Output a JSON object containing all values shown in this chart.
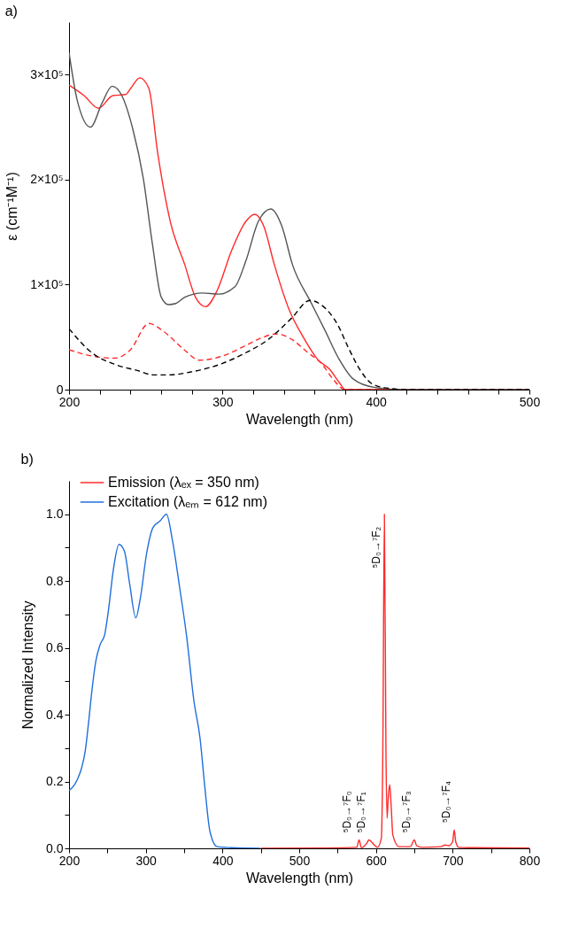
{
  "chart_data": [
    {
      "type": "line",
      "title": "a)",
      "xlabel": "Wavelength (nm)",
      "ylabel": "ε (cm⁻¹M⁻¹)",
      "xlim": [
        200,
        500
      ],
      "xticks": [
        200,
        {
          "value": 220,
          "label": null
        },
        {
          "value": 240,
          "label": null
        },
        {
          "value": 260,
          "label": null
        },
        {
          "value": 280,
          "label": null
        },
        300,
        {
          "value": 320,
          "label": null
        },
        {
          "value": 340,
          "label": null
        },
        {
          "value": 360,
          "label": null
        },
        {
          "value": 380,
          "label": null
        },
        400,
        {
          "value": 420,
          "label": null
        },
        {
          "value": 440,
          "label": null
        },
        {
          "value": 460,
          "label": null
        },
        {
          "value": 480,
          "label": null
        },
        500
      ],
      "ylim": [
        0,
        350000
      ],
      "yticks": [
        0,
        {
          "value": 100000,
          "label": "1×10⁵"
        },
        {
          "value": 200000,
          "label": "2×10⁵"
        },
        {
          "value": 300000,
          "label": "3×10⁵"
        }
      ],
      "grid": false,
      "marker": "none",
      "series": [
        {
          "color": "#ff2a2a",
          "line_style": "solid",
          "x": [
            200,
            209.8,
            219.2,
            228.5,
            236.7,
            240.2,
            246.1,
            252,
            257.8,
            266,
            275.4,
            282.4,
            289,
            296.4,
            305.8,
            315.1,
            321,
            326.8,
            333.8,
            343.2,
            352.6,
            361.9,
            370.1,
            376,
            380.2,
            400,
            500
          ],
          "values": [
            290000,
            280000,
            268000,
            280000,
            281000,
            287000,
            297000,
            287000,
            225000,
            160000,
            119000,
            88000,
            79000,
            94000,
            132000,
            160000,
            167000,
            156000,
            119000,
            77000,
            50000,
            29000,
            19000,
            7000,
            0,
            0,
            0
          ]
        },
        {
          "color": "#555555",
          "line_style": "solid",
          "x": [
            200,
            205.1,
            214,
            221.5,
            228.1,
            234.4,
            241.4,
            248.4,
            254.3,
            260.1,
            264.8,
            269.5,
            275.4,
            287,
            297.6,
            308.1,
            315.1,
            323.3,
            331.5,
            338.6,
            345.6,
            357.3,
            366.6,
            376,
            385.3,
            399.4,
            418,
            500
          ],
          "values": [
            321000,
            277000,
            250000,
            273000,
            289000,
            280000,
            249000,
            201000,
            139000,
            88000,
            81000,
            82000,
            88000,
            92000,
            91000,
            98000,
            122000,
            160000,
            172000,
            156000,
            119000,
            84000,
            57000,
            29000,
            10000,
            2000,
            0,
            0
          ]
        },
        {
          "color": "#ff2a2a",
          "line_style": "dashed",
          "x": [
            200,
            215,
            230,
            240,
            252,
            262,
            275,
            285,
            300,
            315,
            325,
            335,
            345,
            355,
            365,
            372,
            380,
            500
          ],
          "values": [
            38000,
            32000,
            30000,
            38000,
            63000,
            55000,
            38000,
            28000,
            32000,
            42000,
            49000,
            53000,
            48000,
            36000,
            24000,
            10000,
            0,
            0
          ]
        },
        {
          "color": "#000000",
          "line_style": "dashed",
          "x": [
            200,
            215,
            230,
            245,
            255,
            265,
            280,
            300,
            315,
            330,
            345,
            357,
            365,
            375,
            382,
            390,
            398,
            410,
            420,
            500
          ],
          "values": [
            58000,
            35000,
            24000,
            18000,
            14000,
            14000,
            17000,
            25000,
            35000,
            48000,
            68000,
            85000,
            80000,
            62000,
            40000,
            18000,
            5000,
            1000,
            0,
            0
          ]
        }
      ]
    },
    {
      "type": "line",
      "title": "b)",
      "xlabel": "Wavelength (nm)",
      "ylabel": "Normalized Intensity",
      "xlim": [
        200,
        800
      ],
      "xticks": [
        200,
        {
          "value": 250,
          "label": null
        },
        300,
        {
          "value": 350,
          "label": null
        },
        400,
        {
          "value": 450,
          "label": null
        },
        500,
        {
          "value": 550,
          "label": null
        },
        600,
        {
          "value": 650,
          "label": null
        },
        700,
        {
          "value": 750,
          "label": null
        },
        800
      ],
      "ylim": [
        0,
        1.1
      ],
      "yticks": [
        {
          "value": 0,
          "label": "0.0"
        },
        {
          "value": 0.1,
          "label": null
        },
        0.2,
        {
          "value": 0.3,
          "label": null
        },
        0.4,
        {
          "value": 0.5,
          "label": null
        },
        0.6,
        {
          "value": 0.7,
          "label": null
        },
        0.8,
        {
          "value": 0.9,
          "label": null
        },
        {
          "value": 1.0,
          "label": "1.0"
        }
      ],
      "grid": false,
      "legend": "top left",
      "marker": "none",
      "series": [
        {
          "name": "Emission  (λₑₓ = 350 nm)",
          "color": "#ff2a2a",
          "line_style": "solid",
          "x": [
            450,
            530,
            575,
            578,
            581,
            588,
            591,
            594,
            597,
            602,
            607,
            609,
            611,
            613,
            614.5,
            616,
            618,
            620,
            622,
            630,
            645,
            650,
            653,
            660,
            685,
            690,
            695,
            700,
            702,
            704,
            708,
            720,
            800
          ],
          "values": [
            0,
            0.001,
            0.003,
            0.025,
            0.002,
            0.015,
            0.025,
            0.02,
            0.012,
            0.003,
            0.03,
            0.3,
            1.0,
            0.3,
            0.09,
            0.15,
            0.19,
            0.12,
            0.04,
            0.005,
            0.005,
            0.025,
            0.008,
            0.003,
            0.005,
            0.01,
            0.008,
            0.02,
            0.055,
            0.02,
            0.003,
            0.002,
            0.001
          ]
        },
        {
          "name": "Excitation (λₑₘ = 612 nm)",
          "color": "#1f6fdc",
          "line_style": "solid",
          "x": [
            200,
            207,
            211.6,
            216.3,
            221,
            225.6,
            230.2,
            234.9,
            240.5,
            246.5,
            251.2,
            258.1,
            265.1,
            272.1,
            279.1,
            287,
            293,
            300.9,
            309.3,
            318.6,
            327,
            334.9,
            344.2,
            353.5,
            362.8,
            370.7,
            376.7,
            383.7,
            393,
            411.6,
            449
          ],
          "values": [
            0.173,
            0.19,
            0.21,
            0.24,
            0.29,
            0.38,
            0.48,
            0.56,
            0.61,
            0.64,
            0.71,
            0.84,
            0.91,
            0.89,
            0.79,
            0.69,
            0.75,
            0.88,
            0.96,
            0.98,
            1.0,
            0.92,
            0.78,
            0.63,
            0.44,
            0.33,
            0.19,
            0.05,
            0.005,
            0.002,
            0
          ]
        }
      ],
      "annotations": [
        {
          "text": "⁵D₀→⁷F₀",
          "x": 578,
          "y": 0.025
        },
        {
          "text": "⁵D₀→⁷F₁",
          "x": 591,
          "y": 0.025
        },
        {
          "text": "⁵D₀→⁷F₂",
          "x": 611,
          "y": 1.0
        },
        {
          "text": "⁵D₀→⁷F₃",
          "x": 650,
          "y": 0.025
        },
        {
          "text": "⁵D₀→⁷F₄",
          "x": 702,
          "y": 0.055
        }
      ]
    }
  ]
}
